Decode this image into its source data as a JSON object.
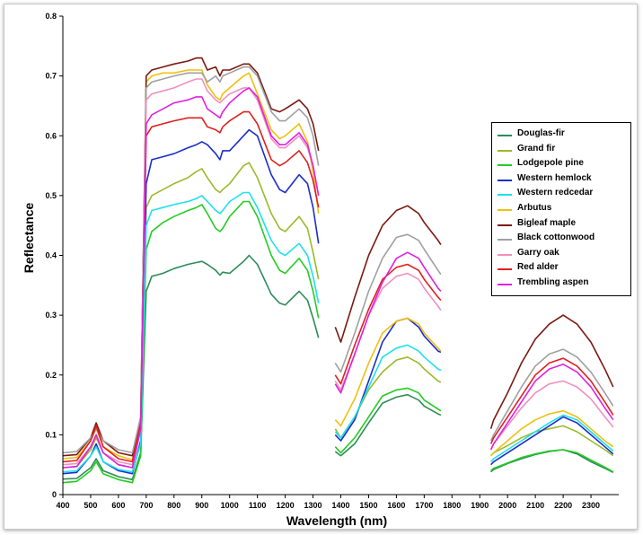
{
  "chart_data": {
    "type": "line",
    "title": "",
    "xlabel": "Wavelength (nm)",
    "ylabel": "Reflectance",
    "xlim": [
      400,
      2400
    ],
    "ylim": [
      0,
      0.8
    ],
    "xticks": [
      400,
      500,
      600,
      700,
      800,
      900,
      1000,
      1100,
      1200,
      1300,
      1400,
      1500,
      1600,
      1700,
      1800,
      1900,
      2000,
      2100,
      2200,
      2300
    ],
    "yticks": [
      0,
      0.1,
      0.2,
      0.3,
      0.4,
      0.5,
      0.6,
      0.7,
      0.8
    ],
    "grid": false,
    "legend_position": "right",
    "x": [
      400,
      450,
      500,
      520,
      545,
      600,
      650,
      680,
      700,
      720,
      760,
      800,
      850,
      880,
      900,
      920,
      950,
      965,
      975,
      1000,
      1050,
      1070,
      1100,
      1150,
      1180,
      1200,
      1250,
      1280,
      1300,
      1320,
      1380,
      1400,
      1450,
      1500,
      1550,
      1600,
      1640,
      1680,
      1700,
      1750,
      1760,
      1940,
      1950,
      2000,
      2050,
      2100,
      2150,
      2200,
      2250,
      2300,
      2350,
      2380
    ],
    "segments_x": [
      [
        400,
        1320
      ],
      [
        1380,
        1760
      ],
      [
        1940,
        2380
      ]
    ],
    "series": [
      {
        "name": "Douglas-fir",
        "color": "#2e8b57",
        "values": [
          0.026,
          0.027,
          0.045,
          0.06,
          0.04,
          0.03,
          0.025,
          0.07,
          0.34,
          0.365,
          0.37,
          0.378,
          0.385,
          0.388,
          0.39,
          0.385,
          0.375,
          0.367,
          0.372,
          0.37,
          0.39,
          0.4,
          0.385,
          0.335,
          0.32,
          0.317,
          0.34,
          0.325,
          0.295,
          0.262,
          0.072,
          0.065,
          0.085,
          0.12,
          0.153,
          0.163,
          0.167,
          0.158,
          0.148,
          0.135,
          0.133,
          0.038,
          0.042,
          0.052,
          0.06,
          0.067,
          0.072,
          0.075,
          0.068,
          0.055,
          0.044,
          0.037
        ]
      },
      {
        "name": "Grand fir",
        "color": "#9aba2a",
        "values": [
          0.045,
          0.047,
          0.075,
          0.095,
          0.07,
          0.05,
          0.045,
          0.11,
          0.48,
          0.5,
          0.51,
          0.52,
          0.53,
          0.54,
          0.545,
          0.53,
          0.51,
          0.505,
          0.51,
          0.52,
          0.55,
          0.555,
          0.53,
          0.47,
          0.445,
          0.44,
          0.465,
          0.445,
          0.405,
          0.36,
          0.11,
          0.095,
          0.13,
          0.175,
          0.205,
          0.225,
          0.23,
          0.22,
          0.21,
          0.19,
          0.188,
          0.065,
          0.07,
          0.082,
          0.095,
          0.105,
          0.11,
          0.115,
          0.105,
          0.09,
          0.075,
          0.065
        ]
      },
      {
        "name": "Lodgepole pine",
        "color": "#22cc22",
        "values": [
          0.02,
          0.022,
          0.04,
          0.055,
          0.035,
          0.025,
          0.02,
          0.065,
          0.41,
          0.44,
          0.455,
          0.465,
          0.475,
          0.48,
          0.485,
          0.47,
          0.445,
          0.44,
          0.445,
          0.465,
          0.49,
          0.49,
          0.465,
          0.4,
          0.375,
          0.37,
          0.395,
          0.375,
          0.34,
          0.295,
          0.08,
          0.07,
          0.095,
          0.13,
          0.165,
          0.175,
          0.178,
          0.17,
          0.158,
          0.143,
          0.14,
          0.04,
          0.044,
          0.053,
          0.062,
          0.068,
          0.073,
          0.075,
          0.07,
          0.058,
          0.046,
          0.038
        ]
      },
      {
        "name": "Western hemlock",
        "color": "#1a2ecc",
        "values": [
          0.035,
          0.037,
          0.065,
          0.085,
          0.055,
          0.04,
          0.035,
          0.09,
          0.52,
          0.56,
          0.565,
          0.57,
          0.58,
          0.585,
          0.59,
          0.585,
          0.57,
          0.56,
          0.575,
          0.575,
          0.6,
          0.61,
          0.6,
          0.535,
          0.51,
          0.505,
          0.535,
          0.52,
          0.48,
          0.42,
          0.1,
          0.09,
          0.125,
          0.19,
          0.255,
          0.29,
          0.295,
          0.28,
          0.265,
          0.24,
          0.238,
          0.05,
          0.055,
          0.07,
          0.085,
          0.1,
          0.115,
          0.13,
          0.12,
          0.1,
          0.08,
          0.068
        ]
      },
      {
        "name": "Western redcedar",
        "color": "#1ee0ee",
        "values": [
          0.038,
          0.04,
          0.065,
          0.08,
          0.055,
          0.042,
          0.038,
          0.085,
          0.45,
          0.475,
          0.48,
          0.485,
          0.49,
          0.495,
          0.5,
          0.49,
          0.475,
          0.47,
          0.475,
          0.49,
          0.505,
          0.505,
          0.48,
          0.425,
          0.405,
          0.4,
          0.42,
          0.4,
          0.365,
          0.32,
          0.105,
          0.095,
          0.13,
          0.18,
          0.23,
          0.245,
          0.25,
          0.24,
          0.23,
          0.21,
          0.208,
          0.055,
          0.06,
          0.075,
          0.09,
          0.105,
          0.12,
          0.133,
          0.125,
          0.105,
          0.085,
          0.073
        ]
      },
      {
        "name": "Arbutus",
        "color": "#f0c010",
        "values": [
          0.06,
          0.062,
          0.09,
          0.11,
          0.08,
          0.065,
          0.058,
          0.12,
          0.69,
          0.7,
          0.705,
          0.705,
          0.71,
          0.71,
          0.71,
          0.685,
          0.665,
          0.66,
          0.67,
          0.68,
          0.7,
          0.705,
          0.67,
          0.61,
          0.595,
          0.6,
          0.62,
          0.59,
          0.54,
          0.47,
          0.125,
          0.115,
          0.16,
          0.22,
          0.27,
          0.29,
          0.295,
          0.285,
          0.27,
          0.245,
          0.24,
          0.065,
          0.07,
          0.09,
          0.11,
          0.125,
          0.135,
          0.14,
          0.13,
          0.11,
          0.09,
          0.08
        ]
      },
      {
        "name": "Bigleaf maple",
        "color": "#7a1a10",
        "values": [
          0.065,
          0.067,
          0.095,
          0.12,
          0.09,
          0.07,
          0.065,
          0.13,
          0.7,
          0.71,
          0.715,
          0.72,
          0.725,
          0.73,
          0.73,
          0.71,
          0.715,
          0.7,
          0.71,
          0.71,
          0.72,
          0.72,
          0.705,
          0.645,
          0.64,
          0.645,
          0.66,
          0.645,
          0.62,
          0.575,
          0.28,
          0.255,
          0.33,
          0.4,
          0.45,
          0.475,
          0.483,
          0.47,
          0.455,
          0.425,
          0.418,
          0.11,
          0.125,
          0.17,
          0.22,
          0.26,
          0.285,
          0.3,
          0.285,
          0.255,
          0.21,
          0.18
        ]
      },
      {
        "name": "Black cottonwood",
        "color": "#a0a0a0",
        "values": [
          0.07,
          0.072,
          0.095,
          0.11,
          0.09,
          0.075,
          0.07,
          0.13,
          0.68,
          0.69,
          0.695,
          0.7,
          0.705,
          0.705,
          0.705,
          0.69,
          0.7,
          0.69,
          0.7,
          0.705,
          0.715,
          0.715,
          0.7,
          0.64,
          0.625,
          0.625,
          0.645,
          0.63,
          0.6,
          0.55,
          0.22,
          0.205,
          0.27,
          0.34,
          0.395,
          0.43,
          0.435,
          0.425,
          0.41,
          0.375,
          0.368,
          0.09,
          0.1,
          0.14,
          0.18,
          0.215,
          0.235,
          0.243,
          0.23,
          0.205,
          0.17,
          0.148
        ]
      },
      {
        "name": "Garry oak",
        "color": "#f090c0",
        "values": [
          0.05,
          0.052,
          0.08,
          0.1,
          0.07,
          0.055,
          0.05,
          0.11,
          0.66,
          0.67,
          0.675,
          0.68,
          0.69,
          0.695,
          0.695,
          0.675,
          0.66,
          0.655,
          0.66,
          0.67,
          0.68,
          0.68,
          0.66,
          0.595,
          0.58,
          0.58,
          0.6,
          0.58,
          0.55,
          0.5,
          0.19,
          0.175,
          0.235,
          0.3,
          0.345,
          0.365,
          0.37,
          0.36,
          0.345,
          0.315,
          0.308,
          0.075,
          0.085,
          0.115,
          0.145,
          0.17,
          0.185,
          0.19,
          0.18,
          0.16,
          0.13,
          0.113
        ]
      },
      {
        "name": "Red alder",
        "color": "#e02020",
        "values": [
          0.055,
          0.057,
          0.09,
          0.115,
          0.08,
          0.06,
          0.055,
          0.12,
          0.6,
          0.615,
          0.62,
          0.625,
          0.63,
          0.63,
          0.63,
          0.615,
          0.61,
          0.605,
          0.615,
          0.625,
          0.64,
          0.64,
          0.62,
          0.56,
          0.55,
          0.555,
          0.575,
          0.555,
          0.525,
          0.48,
          0.2,
          0.185,
          0.25,
          0.31,
          0.36,
          0.38,
          0.385,
          0.375,
          0.36,
          0.33,
          0.325,
          0.085,
          0.095,
          0.13,
          0.165,
          0.2,
          0.22,
          0.228,
          0.215,
          0.19,
          0.155,
          0.133
        ]
      },
      {
        "name": "Trembling aspen",
        "color": "#e020e0",
        "values": [
          0.045,
          0.047,
          0.08,
          0.1,
          0.07,
          0.05,
          0.045,
          0.11,
          0.62,
          0.635,
          0.645,
          0.655,
          0.66,
          0.665,
          0.665,
          0.645,
          0.635,
          0.63,
          0.64,
          0.655,
          0.675,
          0.68,
          0.665,
          0.6,
          0.585,
          0.585,
          0.605,
          0.585,
          0.55,
          0.5,
          0.185,
          0.17,
          0.235,
          0.3,
          0.355,
          0.395,
          0.405,
          0.395,
          0.38,
          0.345,
          0.34,
          0.075,
          0.085,
          0.12,
          0.155,
          0.19,
          0.21,
          0.218,
          0.205,
          0.18,
          0.145,
          0.125
        ]
      }
    ]
  }
}
